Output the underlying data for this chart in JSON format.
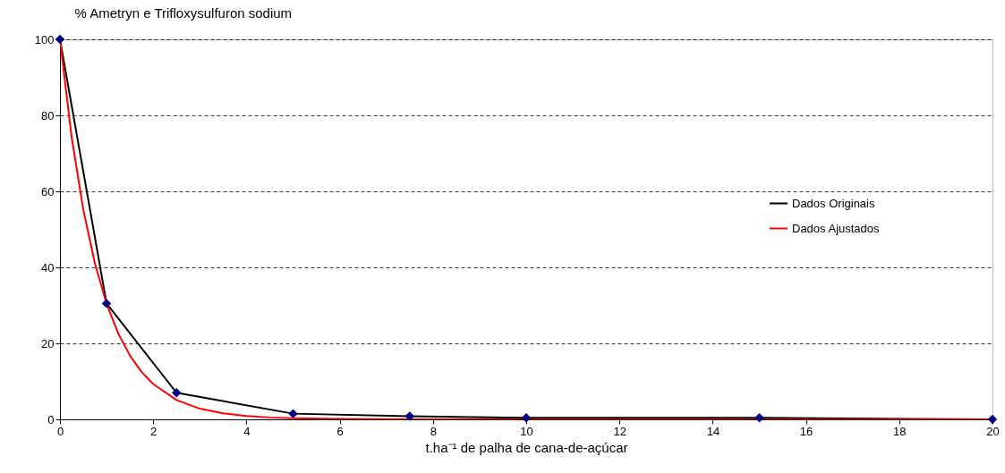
{
  "chart_data": {
    "type": "line",
    "ylabel": "% Ametryn e Trifloxysulfuron sodium",
    "xlabel": "t.ha⁻¹ de palha de cana-de-açúcar",
    "xlim": [
      0,
      20
    ],
    "xticks": [
      0,
      2,
      4,
      6,
      8,
      10,
      12,
      14,
      16,
      18,
      20
    ],
    "ylim": [
      0,
      100
    ],
    "yticks": [
      0,
      20,
      40,
      60,
      80,
      100
    ],
    "grid": "y",
    "legend": "right",
    "line_style": "solid",
    "series": [
      {
        "name": "Dados Originais",
        "color": "#000000",
        "colors": [
          "#000080",
          "#000080",
          "#000080",
          "#000080",
          "#000080",
          "#000080",
          "#000080",
          "#000080"
        ],
        "marker": "diamond",
        "x": [
          0,
          1,
          2.5,
          5,
          7.5,
          10,
          15,
          20
        ],
        "values": [
          100,
          30.5,
          7,
          1.5,
          0.8,
          0.4,
          0.4,
          0
        ]
      },
      {
        "name": "Dados Ajustados",
        "color": "#ff0000",
        "marker": "none",
        "x": [
          0,
          0.25,
          0.5,
          0.75,
          1,
          1.25,
          1.5,
          1.75,
          2,
          2.5,
          3,
          3.5,
          4,
          4.5,
          5,
          6,
          8,
          10,
          15,
          20
        ],
        "values": [
          100,
          74.3,
          55.2,
          41,
          30.4,
          22.6,
          16.8,
          12.5,
          9.3,
          5.1,
          2.8,
          1.6,
          0.9,
          0.5,
          0.3,
          0.1,
          0,
          0,
          0,
          0
        ]
      }
    ]
  }
}
